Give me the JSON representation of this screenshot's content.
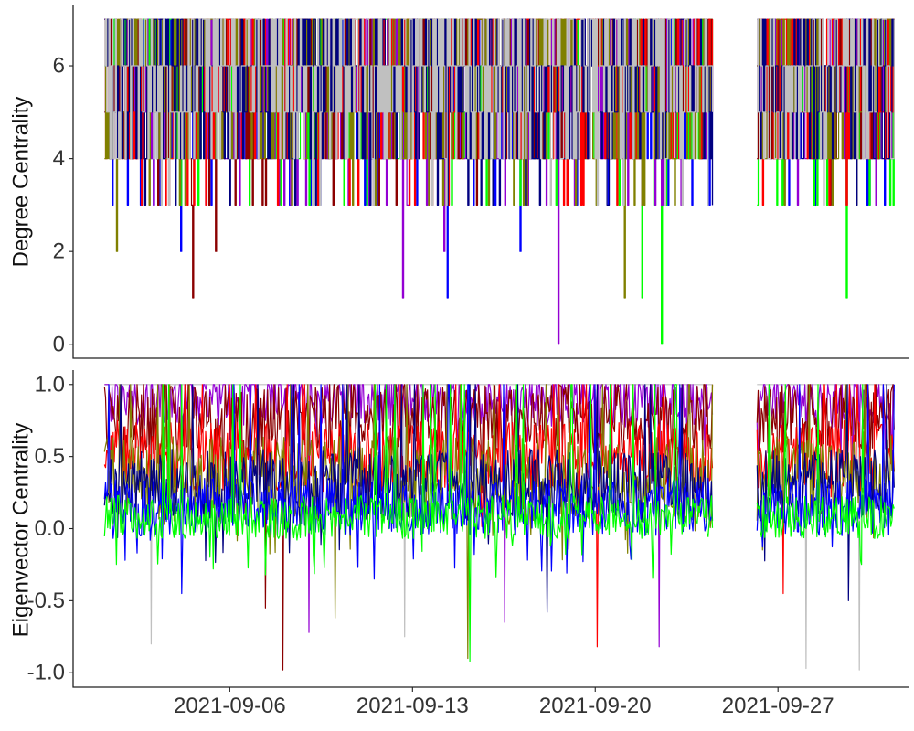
{
  "chart_data": [
    {
      "type": "line",
      "ylabel": "Degree Centrality",
      "ylim": [
        -0.3,
        7.3
      ],
      "yticks": [
        0,
        2,
        4,
        6
      ],
      "xlim": [
        "2021-08-31",
        "2021-10-02"
      ],
      "gaps": [
        [
          "2021-09-24",
          "2021-09-26"
        ]
      ],
      "grid": false,
      "series": [
        {
          "color": "#0000ff",
          "min": 0,
          "max": 7,
          "dips": [
            [
              "2021-09-01",
              3
            ],
            [
              "2021-09-04",
              2
            ],
            [
              "2021-09-14",
              1
            ],
            [
              "2021-09-17",
              2
            ],
            [
              "2021-09-27",
              3
            ]
          ]
        },
        {
          "color": "#00ff00",
          "min": 0,
          "max": 7,
          "dips": [
            [
              "2021-09-22",
              0
            ],
            [
              "2021-09-21",
              1
            ],
            [
              "2021-10-01",
              1
            ],
            [
              "2021-09-29",
              1
            ]
          ]
        },
        {
          "color": "#9400d3",
          "min": 0,
          "max": 7,
          "dips": [
            [
              "2021-09-18",
              0
            ],
            [
              "2021-09-12",
              1
            ],
            [
              "2021-09-14",
              2
            ]
          ]
        },
        {
          "color": "#8b0000",
          "min": 1,
          "max": 7,
          "dips": [
            [
              "2021-09-04",
              1
            ],
            [
              "2021-09-05",
              2
            ]
          ]
        },
        {
          "color": "#ff0000",
          "min": 2,
          "max": 7,
          "dips": [
            [
              "2021-09-02",
              3
            ]
          ]
        },
        {
          "color": "#808000",
          "min": 1,
          "max": 7,
          "dips": [
            [
              "2021-09-01",
              2
            ],
            [
              "2021-09-21",
              1
            ]
          ]
        },
        {
          "color": "#000080",
          "min": 2,
          "max": 7,
          "dips": []
        },
        {
          "color": "#c0c0c0",
          "min": 2,
          "max": 7,
          "dips": []
        }
      ]
    },
    {
      "type": "line",
      "ylabel": "Eigenvector Centrality",
      "ylim": [
        -1.1,
        1.1
      ],
      "yticks": [
        -1.0,
        -0.5,
        0.0,
        0.5,
        1.0
      ],
      "xlim": [
        "2021-08-31",
        "2021-10-02"
      ],
      "xticks": [
        "2021-09-06",
        "2021-09-13",
        "2021-09-20",
        "2021-09-27"
      ],
      "gaps": [
        [
          "2021-09-24",
          "2021-09-26"
        ]
      ],
      "grid": false,
      "series": [
        {
          "color": "#c0c0c0",
          "mean": 1.0,
          "spread": 0.0,
          "dips": [
            [
              "2021-09-03",
              -0.8
            ],
            [
              "2021-09-12",
              -0.75
            ],
            [
              "2021-09-28",
              -0.97
            ],
            [
              "2021-09-30",
              -0.98
            ]
          ]
        },
        {
          "color": "#9400d3",
          "mean": 0.9,
          "spread": 0.2,
          "dips": [
            [
              "2021-09-09",
              -0.72
            ],
            [
              "2021-09-16",
              -0.65
            ],
            [
              "2021-09-22",
              -0.82
            ]
          ]
        },
        {
          "color": "#8b0000",
          "mean": 0.75,
          "spread": 0.25,
          "dips": [
            [
              "2021-09-08",
              -0.98
            ],
            [
              "2021-09-07",
              -0.55
            ]
          ]
        },
        {
          "color": "#ff0000",
          "mean": 0.5,
          "spread": 0.25,
          "dips": [
            [
              "2021-09-20",
              -0.82
            ],
            [
              "2021-09-27",
              -0.45
            ]
          ]
        },
        {
          "color": "#808000",
          "mean": 0.35,
          "spread": 0.3,
          "dips": [
            [
              "2021-09-15",
              -0.9
            ],
            [
              "2021-09-10",
              -0.62
            ]
          ]
        },
        {
          "color": "#000080",
          "mean": 0.3,
          "spread": 0.25,
          "dips": [
            [
              "2021-09-18",
              -0.58
            ],
            [
              "2021-09-29",
              -0.5
            ]
          ]
        },
        {
          "color": "#0000ff",
          "mean": 0.15,
          "spread": 0.2,
          "dips": [
            [
              "2021-09-04",
              -0.45
            ],
            [
              "2021-09-11",
              -0.35
            ]
          ]
        },
        {
          "color": "#00ff00",
          "mean": 0.08,
          "spread": 0.15,
          "dips": [
            [
              "2021-09-15",
              -0.92
            ],
            [
              "2021-09-05",
              -0.28
            ]
          ]
        }
      ]
    }
  ]
}
